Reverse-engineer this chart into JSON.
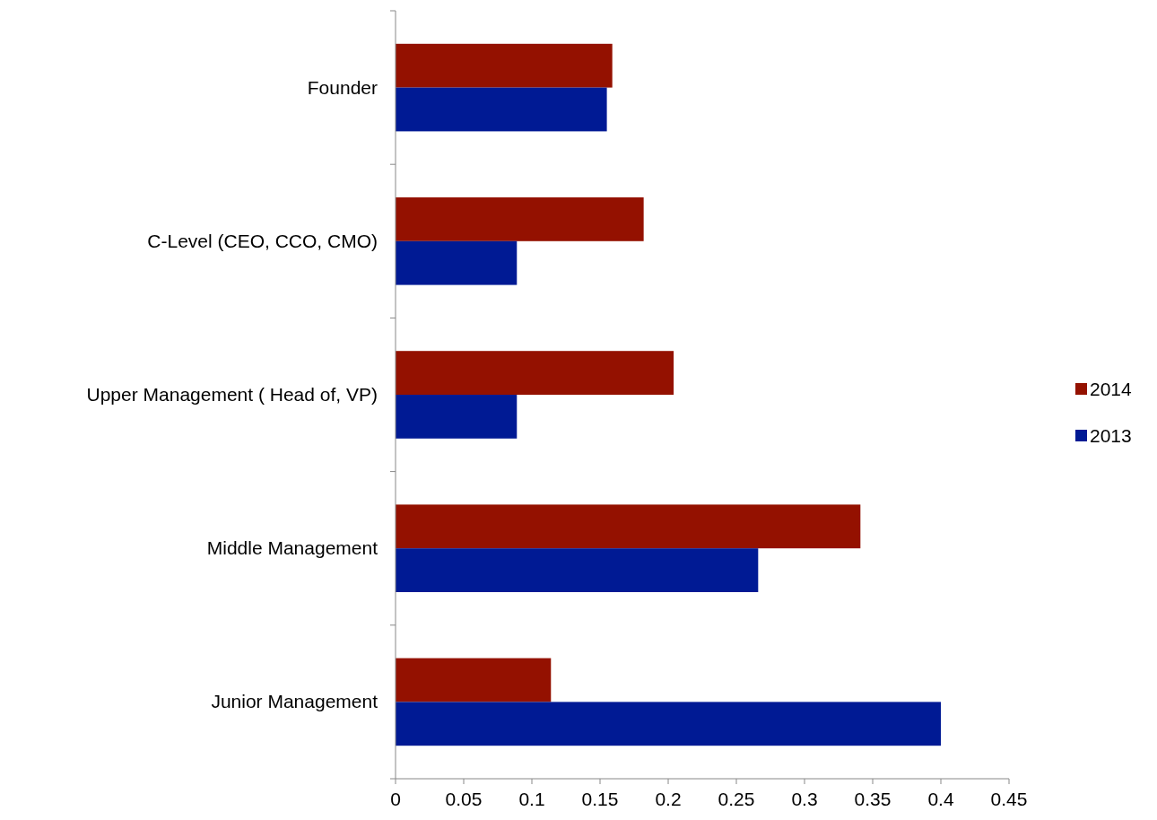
{
  "chart_data": {
    "type": "bar",
    "orientation": "horizontal",
    "categories": [
      "Founder",
      "C-Level (CEO, CCO, CMO)",
      "Upper Management ( Head of, VP)",
      "Middle Management",
      "Junior Management"
    ],
    "series": [
      {
        "name": "2014",
        "color": "#941100",
        "values": [
          0.159,
          0.182,
          0.204,
          0.341,
          0.114
        ]
      },
      {
        "name": "2013",
        "color": "#001a94",
        "values": [
          0.155,
          0.089,
          0.089,
          0.266,
          0.4
        ]
      }
    ],
    "xlim": [
      0,
      0.45
    ],
    "xticks": [
      0,
      0.05,
      0.1,
      0.15,
      0.2,
      0.25,
      0.3,
      0.35,
      0.4,
      0.45
    ],
    "grid": false,
    "legend": "right"
  }
}
